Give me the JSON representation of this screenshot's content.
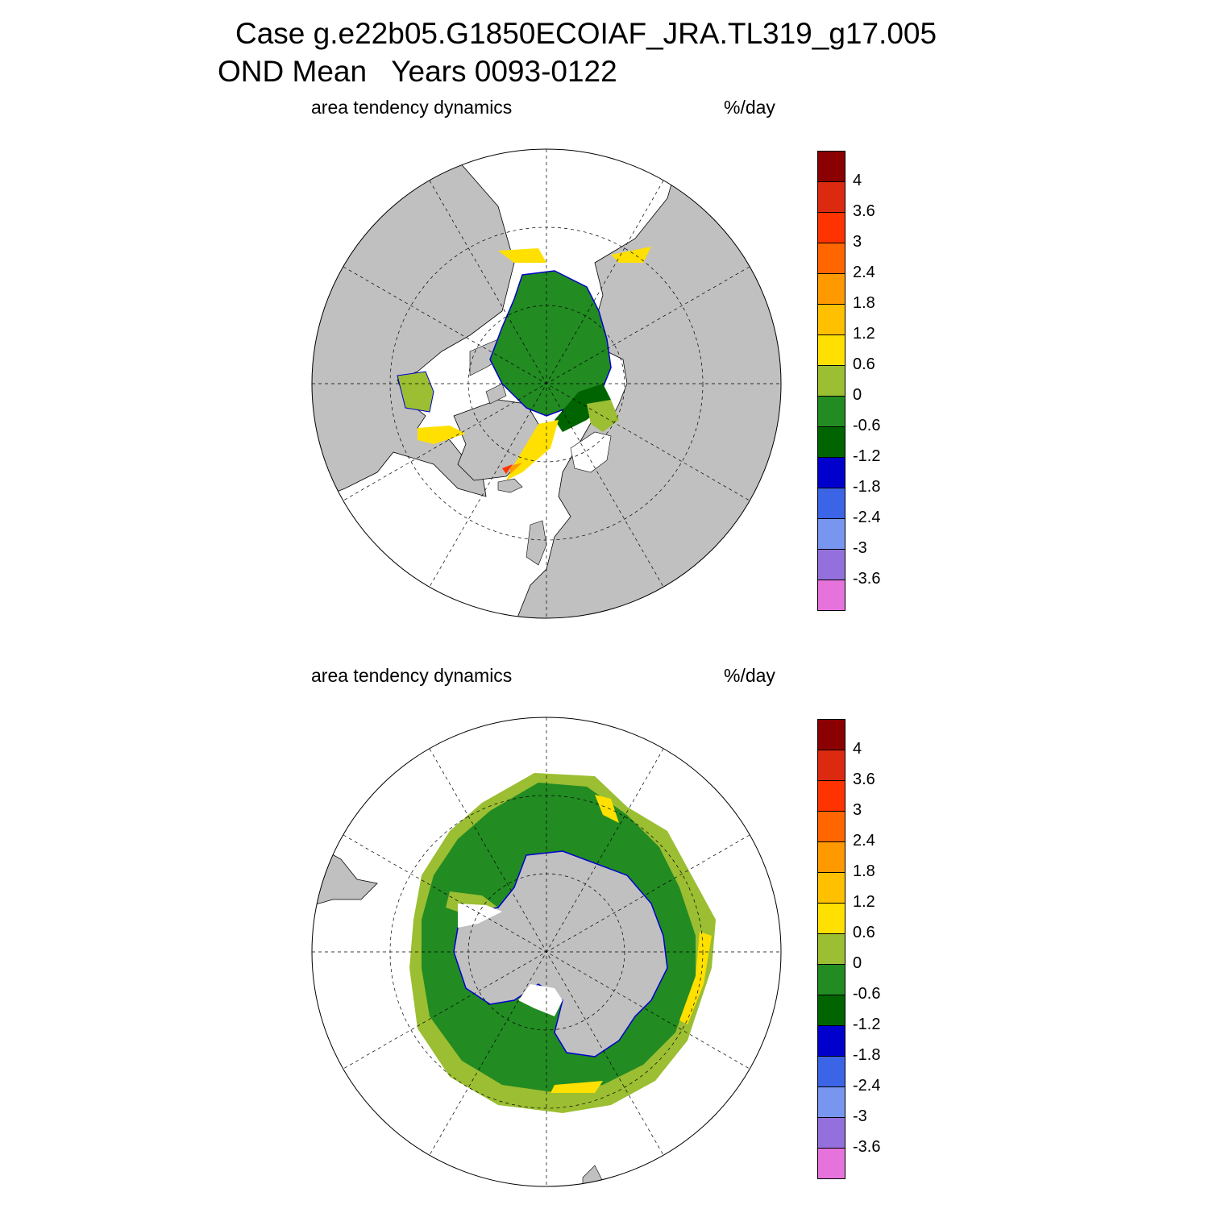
{
  "title": {
    "line1": "Case g.e22b05.G1850ECOIAF_JRA.TL319_g17.005",
    "line2": "OND Mean   Years 0093-0122"
  },
  "panels": [
    {
      "name": "north",
      "left_label": "area tendency dynamics",
      "right_label": "%/day"
    },
    {
      "name": "south",
      "left_label": "area tendency dynamics",
      "right_label": "%/day"
    }
  ],
  "colorbar": {
    "labels": [
      "4",
      "3.6",
      "3",
      "2.4",
      "1.8",
      "1.2",
      "0.6",
      "0",
      "-0.6",
      "-1.2",
      "-1.8",
      "-2.4",
      "-3",
      "-3.6"
    ],
    "colors": [
      "#8b0000",
      "#dc2a10",
      "#ff3300",
      "#ff6600",
      "#ff9900",
      "#ffc000",
      "#ffe000",
      "#9bbe32",
      "#228b22",
      "#006400",
      "#0000cd",
      "#3c64e6",
      "#7896f0",
      "#9370db",
      "#e673dc"
    ]
  },
  "map_colors": {
    "land": "#c0c0c0",
    "ocean": "#ffffff",
    "ice_green": "#228b22",
    "ice_dark_green": "#006400",
    "ice_light_green": "#9bbe32",
    "ice_yellow": "#ffe000",
    "ice_orange": "#ffc000",
    "ice_red": "#ff3300",
    "edge_blue": "#0000cd"
  }
}
